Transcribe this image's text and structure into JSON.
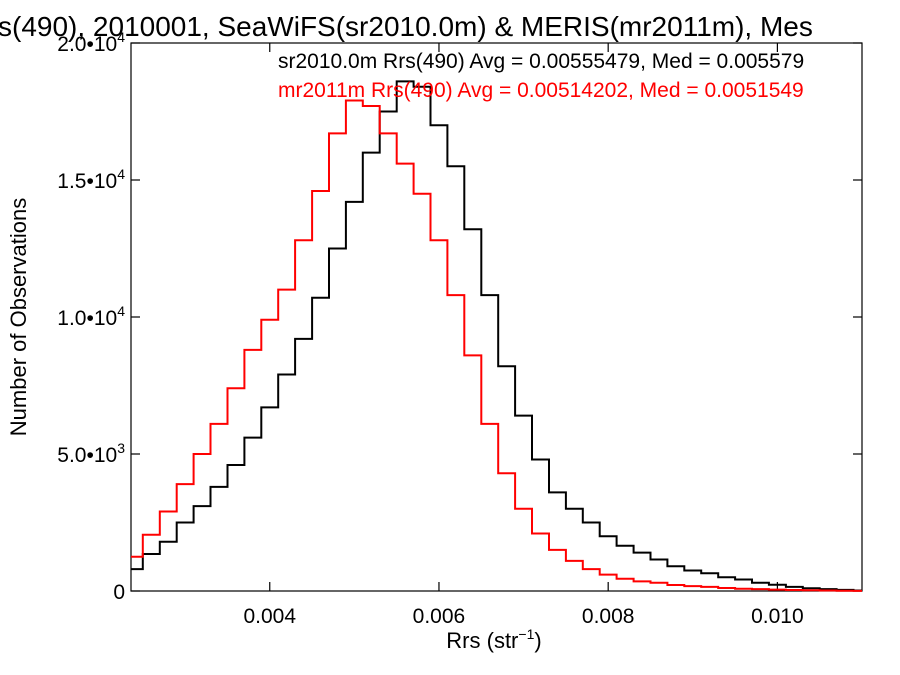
{
  "chart_data": {
    "type": "line",
    "title": "s(490), 2010001, SeaWiFS(sr2010.0m) & MERIS(mr2011m), Mes",
    "xlabel": "Rrs (str",
    "xlabel_sup": "−1",
    "xlabel_close": ")",
    "ylabel": "Number of Observations",
    "xlim": [
      0.00236,
      0.011
    ],
    "ylim": [
      0,
      20000
    ],
    "grid": false,
    "x_ticks": [
      {
        "value": 0.004,
        "label": "0.004"
      },
      {
        "value": 0.006,
        "label": "0.006"
      },
      {
        "value": 0.008,
        "label": "0.008"
      },
      {
        "value": 0.01,
        "label": "0.010"
      }
    ],
    "y_ticks": [
      {
        "value": 0,
        "label": "0",
        "sup": ""
      },
      {
        "value": 5000,
        "label": "5.0•10",
        "sup": "3"
      },
      {
        "value": 10000,
        "label": "1.0•10",
        "sup": "4"
      },
      {
        "value": 15000,
        "label": "1.5•10",
        "sup": "4"
      },
      {
        "value": 20000,
        "label": "2.0•10",
        "sup": "4"
      }
    ],
    "annotations": [
      {
        "text": "sr2010.0m Rrs(490) Avg = 0.00555479, Med = 0.005579",
        "color": "#000000"
      },
      {
        "text": "mr2011m Rrs(490) Avg = 0.00514202, Med = 0.0051549",
        "color": "#ff0000"
      }
    ],
    "x": [
      0.0024,
      0.0026,
      0.0028,
      0.003,
      0.0032,
      0.0034,
      0.0036,
      0.0038,
      0.004,
      0.0042,
      0.0044,
      0.0046,
      0.0048,
      0.005,
      0.0052,
      0.0054,
      0.0056,
      0.0058,
      0.006,
      0.0062,
      0.0064,
      0.0066,
      0.0068,
      0.007,
      0.0072,
      0.0074,
      0.0076,
      0.0078,
      0.008,
      0.0082,
      0.0084,
      0.0086,
      0.0088,
      0.009,
      0.0092,
      0.0094,
      0.0096,
      0.0098,
      0.01,
      0.0102,
      0.0104,
      0.0106,
      0.0108,
      0.011
    ],
    "series": [
      {
        "color": "#000000",
        "values": [
          800,
          1350,
          1800,
          2500,
          3100,
          3800,
          4600,
          5600,
          6700,
          7900,
          9200,
          10700,
          12500,
          14200,
          16000,
          17500,
          18600,
          18400,
          17000,
          15500,
          13200,
          10800,
          8200,
          6400,
          4800,
          3600,
          3000,
          2500,
          2000,
          1650,
          1400,
          1150,
          900,
          750,
          650,
          500,
          420,
          300,
          230,
          150,
          100,
          70,
          40,
          20
        ]
      },
      {
        "color": "#ff0000",
        "values": [
          1250,
          2050,
          2900,
          3900,
          5000,
          6100,
          7400,
          8800,
          9900,
          11000,
          12800,
          14600,
          16700,
          17900,
          17700,
          16700,
          15600,
          14500,
          12800,
          10800,
          8600,
          6100,
          4300,
          3000,
          2100,
          1500,
          1100,
          800,
          600,
          450,
          350,
          300,
          220,
          180,
          150,
          110,
          80,
          70,
          50,
          35,
          25,
          20,
          10,
          5
        ]
      }
    ]
  }
}
